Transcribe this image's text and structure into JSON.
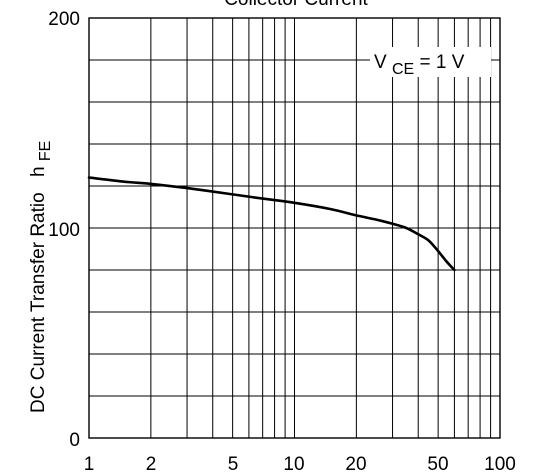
{
  "chart_data": {
    "type": "line",
    "title": "Collector Current",
    "xlabel": "",
    "ylabel_main": "DC Current Transfer Ratio",
    "ylabel_symbol": "h",
    "ylabel_subscript": "FE",
    "xscale": "log",
    "xlim": [
      1,
      100
    ],
    "ylim": [
      0,
      200
    ],
    "x_ticks": [
      1,
      2,
      5,
      10,
      20,
      50,
      100
    ],
    "x_tick_labels": [
      "1",
      "2",
      "5",
      "10",
      "20",
      "50",
      "100"
    ],
    "y_ticks": [
      0,
      100,
      200
    ],
    "y_tick_labels": [
      "0",
      "100",
      "200"
    ],
    "grid": true,
    "annotation": {
      "prefix": "V",
      "subscript": "CE",
      "suffix": " = 1 V"
    },
    "series": [
      {
        "x": [
          1,
          1.5,
          2,
          3,
          5,
          7,
          10,
          15,
          20,
          25,
          30,
          35,
          40,
          45,
          50,
          55,
          60
        ],
        "y": [
          124,
          122,
          121,
          119,
          116,
          114,
          112,
          109,
          106,
          104,
          102,
          100,
          97,
          94,
          89,
          84,
          80
        ]
      }
    ]
  }
}
